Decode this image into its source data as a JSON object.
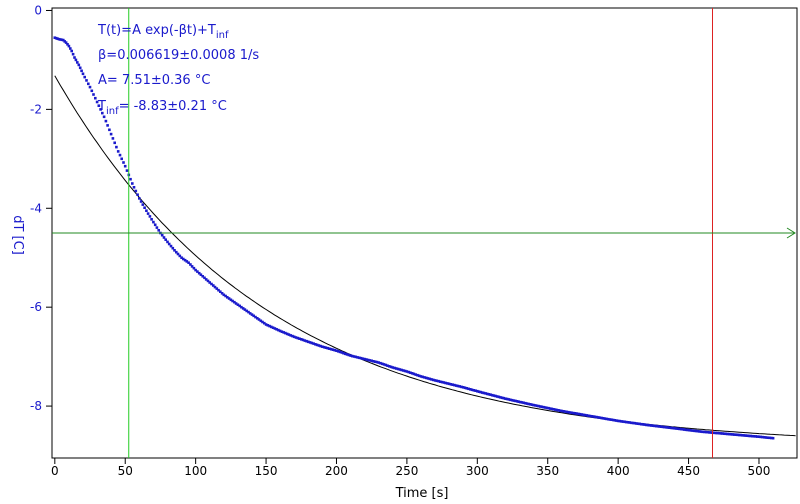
{
  "chart_data": {
    "type": "scatter",
    "xlabel": "Time [s]",
    "ylabel": "dT [C]",
    "xlim": [
      -2,
      527
    ],
    "ylim": [
      -9.05,
      0.05
    ],
    "xticks": [
      0,
      50,
      100,
      150,
      200,
      250,
      300,
      350,
      400,
      450,
      500
    ],
    "yticks": [
      0,
      -2,
      -4,
      -6,
      -8
    ],
    "annotations": {
      "formula_main": "T(t)=A exp(-βt)+T",
      "formula_sub": "inf",
      "beta": "β=0.006619±0.0008 1/s",
      "amp": "A= 7.51±0.36 °C",
      "tinf_main": "T",
      "tinf_sub": "inf",
      "tinf_rest": "= -8.83±0.21 °C"
    },
    "fit": {
      "A": 7.51,
      "beta": 0.006619,
      "T_inf": -8.83
    },
    "measured": {
      "x": [
        0,
        3,
        6,
        8,
        10,
        12,
        14,
        17,
        20,
        25,
        30,
        35,
        40,
        45,
        50,
        55,
        60,
        65,
        70,
        75,
        80,
        85,
        90,
        95,
        100,
        110,
        120,
        130,
        140,
        150,
        160,
        170,
        180,
        190,
        200,
        210,
        220,
        230,
        240,
        250,
        260,
        270,
        280,
        290,
        300,
        320,
        340,
        360,
        380,
        400,
        420,
        440,
        460,
        480,
        500,
        510
      ],
      "y": [
        -0.55,
        -0.58,
        -0.6,
        -0.65,
        -0.72,
        -0.82,
        -0.95,
        -1.1,
        -1.28,
        -1.55,
        -1.85,
        -2.15,
        -2.5,
        -2.85,
        -3.15,
        -3.5,
        -3.8,
        -4.05,
        -4.28,
        -4.5,
        -4.68,
        -4.85,
        -5.0,
        -5.1,
        -5.25,
        -5.5,
        -5.75,
        -5.95,
        -6.15,
        -6.35,
        -6.48,
        -6.6,
        -6.7,
        -6.8,
        -6.88,
        -6.98,
        -7.05,
        -7.12,
        -7.22,
        -7.3,
        -7.4,
        -7.48,
        -7.55,
        -7.62,
        -7.7,
        -7.85,
        -7.98,
        -8.1,
        -8.2,
        -8.3,
        -8.38,
        -8.45,
        -8.52,
        -8.57,
        -8.62,
        -8.65
      ]
    },
    "vlines": [
      {
        "x": 52.5,
        "color": "#22cc22"
      },
      {
        "x": 467,
        "color": "#dd2222"
      }
    ],
    "hline": {
      "y": -4.5,
      "color": "#228822"
    },
    "colors": {
      "data": "#1a1acc",
      "fit": "#000000",
      "text": "#1a1acc",
      "axis": "#000000"
    }
  }
}
